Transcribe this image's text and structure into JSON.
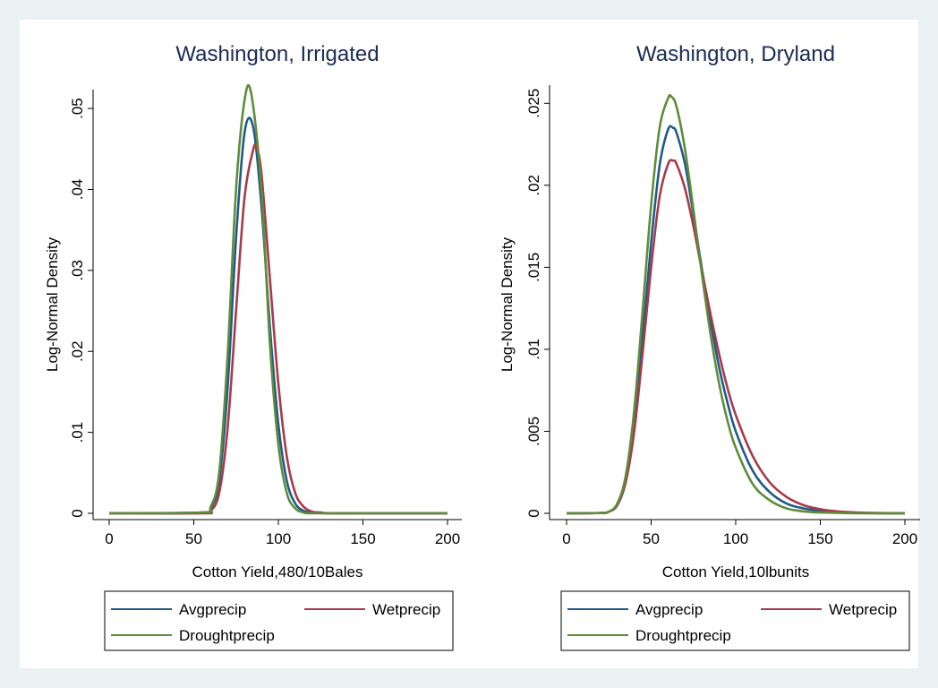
{
  "chart_data": [
    {
      "type": "line",
      "title": "Washington, Irrigated",
      "xlabel": "Cotton Yield,480/10Bales",
      "ylabel": "Log-Normal Density",
      "xlim": [
        0,
        200
      ],
      "ylim": [
        0,
        0.052
      ],
      "xticks": [
        0,
        50,
        100,
        150,
        200
      ],
      "xtick_labels": [
        "0",
        "50",
        "100",
        "150",
        "200"
      ],
      "yticks": [
        0,
        0.01,
        0.02,
        0.03,
        0.04,
        0.05
      ],
      "ytick_labels": [
        "0",
        ".01",
        ".02",
        ".03",
        ".04",
        ".05"
      ],
      "grid": false,
      "legend_position": "bottom",
      "series": [
        {
          "name": "Avgprecip",
          "color": "#1f5a8a",
          "x": [
            0,
            55,
            60,
            65,
            70,
            75,
            80,
            85,
            90,
            95,
            100,
            105,
            110,
            115,
            120,
            130,
            150,
            200
          ],
          "y": [
            0,
            0.0001,
            0.0006,
            0.004,
            0.0155,
            0.034,
            0.047,
            0.0478,
            0.038,
            0.023,
            0.011,
            0.004,
            0.0012,
            0.0003,
            0.0001,
            0,
            0,
            0
          ]
        },
        {
          "name": "Wetprecip",
          "color": "#a83a4a",
          "x": [
            0,
            55,
            60,
            65,
            70,
            75,
            80,
            85,
            87,
            90,
            95,
            100,
            105,
            110,
            115,
            120,
            125,
            130,
            150,
            200
          ],
          "y": [
            0,
            0,
            0.0003,
            0.0025,
            0.0105,
            0.025,
            0.039,
            0.0448,
            0.0452,
            0.042,
            0.029,
            0.016,
            0.007,
            0.0025,
            0.0008,
            0.0002,
            0.0001,
            0,
            0,
            0
          ]
        },
        {
          "name": "Droughtprecip",
          "color": "#5e8c3a",
          "x": [
            0,
            55,
            60,
            65,
            70,
            75,
            80,
            84,
            90,
            95,
            100,
            105,
            110,
            115,
            120,
            150,
            200
          ],
          "y": [
            0,
            0.0001,
            0.0008,
            0.005,
            0.0195,
            0.04,
            0.051,
            0.0518,
            0.04,
            0.021,
            0.0085,
            0.0025,
            0.0006,
            0.0001,
            0,
            0,
            0
          ]
        }
      ]
    },
    {
      "type": "line",
      "title": "Washington, Dryland",
      "xlabel": "Cotton Yield,10lbunits",
      "ylabel": "Log-Normal Density",
      "xlim": [
        0,
        200
      ],
      "ylim": [
        0,
        0.026
      ],
      "xticks": [
        0,
        50,
        100,
        150,
        200
      ],
      "xtick_labels": [
        "0",
        "50",
        "100",
        "150",
        "200"
      ],
      "yticks": [
        0,
        0.005,
        0.01,
        0.015,
        0.02,
        0.025
      ],
      "ytick_labels": [
        "0",
        ".005",
        ".01",
        ".015",
        ".02",
        ".025"
      ],
      "grid": false,
      "legend_position": "bottom",
      "series": [
        {
          "name": "Avgprecip",
          "color": "#1f5a8a",
          "x": [
            0,
            20,
            25,
            30,
            35,
            40,
            45,
            50,
            55,
            60,
            63,
            65,
            70,
            75,
            80,
            85,
            90,
            95,
            100,
            110,
            120,
            130,
            140,
            150,
            160,
            175,
            200
          ],
          "y": [
            0,
            2e-05,
            0.0001,
            0.0005,
            0.002,
            0.0055,
            0.0108,
            0.0165,
            0.0212,
            0.0234,
            0.0235,
            0.0232,
            0.0213,
            0.0182,
            0.0149,
            0.0118,
            0.009,
            0.0068,
            0.005,
            0.0026,
            0.0013,
            0.0006,
            0.0003,
            0.00015,
            7e-05,
            2e-05,
            0
          ]
        },
        {
          "name": "Wetprecip",
          "color": "#a83a4a",
          "x": [
            0,
            20,
            25,
            30,
            35,
            40,
            45,
            50,
            55,
            60,
            63,
            65,
            70,
            75,
            80,
            85,
            90,
            95,
            100,
            110,
            120,
            130,
            140,
            150,
            160,
            175,
            200
          ],
          "y": [
            0,
            2e-05,
            0.0001,
            0.0005,
            0.0019,
            0.005,
            0.0098,
            0.015,
            0.0193,
            0.0213,
            0.0215,
            0.0213,
            0.0198,
            0.0175,
            0.0148,
            0.0122,
            0.0098,
            0.0077,
            0.006,
            0.0035,
            0.0019,
            0.001,
            0.0005,
            0.00025,
            0.00012,
            4e-05,
            0
          ]
        },
        {
          "name": "Droughtprecip",
          "color": "#5e8c3a",
          "x": [
            0,
            20,
            25,
            30,
            35,
            40,
            45,
            50,
            55,
            60,
            62,
            65,
            70,
            75,
            80,
            85,
            90,
            95,
            100,
            110,
            120,
            130,
            140,
            150,
            175,
            200
          ],
          "y": [
            0,
            2e-05,
            0.0001,
            0.0006,
            0.0023,
            0.0063,
            0.0124,
            0.0188,
            0.0235,
            0.0253,
            0.0254,
            0.0248,
            0.0222,
            0.0185,
            0.0146,
            0.011,
            0.008,
            0.0057,
            0.004,
            0.0018,
            0.0008,
            0.0003,
            0.00012,
            5e-05,
            0,
            0
          ]
        }
      ]
    }
  ]
}
